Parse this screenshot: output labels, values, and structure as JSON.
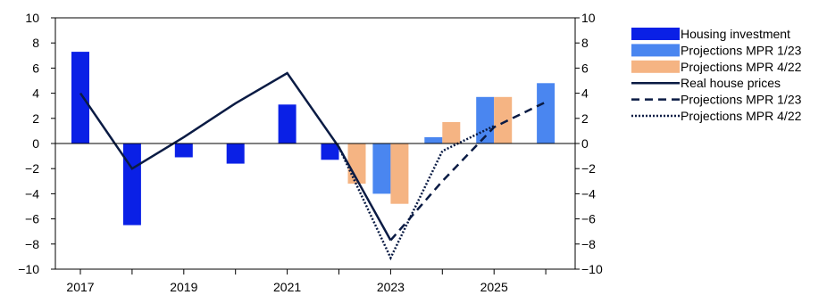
{
  "chart_data": {
    "type": "bar",
    "title": "",
    "xlabel": "",
    "ylabel": "",
    "ylim": [
      -10,
      10
    ],
    "yticks": [
      -10,
      -8,
      -6,
      -4,
      -2,
      0,
      2,
      4,
      6,
      8,
      10
    ],
    "x": [
      2017,
      2018,
      2019,
      2020,
      2021,
      2022,
      2023,
      2024,
      2025,
      2026
    ],
    "xtick_labels": [
      "2017",
      "2019",
      "2021",
      "2023",
      "2025"
    ],
    "xtick_years": [
      2017,
      2019,
      2021,
      2023,
      2025
    ],
    "legend_position": "right",
    "grid": false,
    "series": [
      {
        "name": "Housing investment",
        "kind": "bar",
        "color": "#0a20e6",
        "points": [
          [
            2017,
            7.3
          ],
          [
            2018,
            -6.5
          ],
          [
            2019,
            -1.1
          ],
          [
            2020,
            -1.6
          ],
          [
            2021,
            3.1
          ],
          [
            2022,
            -1.3
          ]
        ]
      },
      {
        "name": "Projections MPR 1/23",
        "kind": "bar",
        "color": "#4a86f0",
        "points": [
          [
            2023,
            -4.0
          ],
          [
            2024,
            0.5
          ],
          [
            2025,
            3.7
          ],
          [
            2026,
            4.8
          ]
        ]
      },
      {
        "name": "Projections MPR 4/22",
        "kind": "bar",
        "color": "#f5b483",
        "points": [
          [
            2022,
            -3.2
          ],
          [
            2023,
            -4.8
          ],
          [
            2024,
            1.7
          ],
          [
            2025,
            3.7
          ]
        ]
      },
      {
        "name": "Real house prices",
        "kind": "line",
        "style": "solid",
        "color": "#0a1b44",
        "points": [
          [
            2017,
            4.0
          ],
          [
            2018,
            -2.0
          ],
          [
            2019,
            0.5
          ],
          [
            2020,
            3.2
          ],
          [
            2021,
            5.6
          ],
          [
            2022,
            -0.3
          ],
          [
            2023,
            -7.7
          ]
        ]
      },
      {
        "name": "Projections MPR 1/23",
        "kind": "line",
        "style": "dashed",
        "color": "#0a1b44",
        "points": [
          [
            2023,
            -7.7
          ],
          [
            2024,
            -3.0
          ],
          [
            2025,
            1.3
          ],
          [
            2026,
            3.3
          ]
        ]
      },
      {
        "name": "Projections MPR 4/22",
        "kind": "line",
        "style": "dotted",
        "color": "#0a1b44",
        "points": [
          [
            2022,
            -0.3
          ],
          [
            2023,
            -9.1
          ],
          [
            2024,
            -0.6
          ],
          [
            2025,
            1.4
          ]
        ]
      }
    ]
  }
}
